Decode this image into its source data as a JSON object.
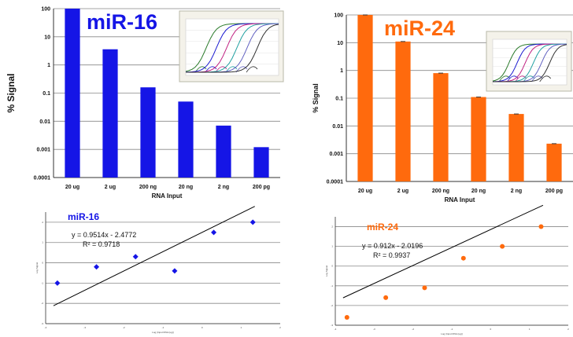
{
  "colors": {
    "blue": "#1515e6",
    "orange": "#ff6a0d",
    "grid": "#888888",
    "fit_line": "#000000"
  },
  "chart_data": [
    {
      "type": "bar",
      "title": "miR-16",
      "ylabel": "% Signal",
      "xlabel": "RNA Input",
      "yscale": "log",
      "ylim": [
        0.0001,
        100
      ],
      "ytick_labels": [
        "100",
        "10",
        "1",
        "0.1",
        "0.01",
        "0.001",
        "0.0001"
      ],
      "categories": [
        "20 ug",
        "2 ug",
        "200 ng",
        "20 ng",
        "2 ng",
        "200 pg"
      ],
      "values": [
        100,
        3.6,
        0.16,
        0.05,
        0.007,
        0.0012
      ],
      "error_bars": false,
      "grid": true,
      "inset": "qPCR amplification curves (thumbnail)"
    },
    {
      "type": "bar",
      "title": "miR-24",
      "ylabel": "% Signal",
      "xlabel": "RNA Input",
      "yscale": "log",
      "ylim": [
        0.0001,
        100
      ],
      "ytick_labels": [
        "100",
        "10",
        "1",
        "0.1",
        "0.01",
        "0.001",
        "0.0001"
      ],
      "categories": [
        "20 ug",
        "2 ug",
        "200 ng",
        "20 ng",
        "2 ng",
        "200 pg"
      ],
      "values": [
        100,
        11,
        0.8,
        0.11,
        0.027,
        0.0023
      ],
      "error_bars": true,
      "grid": true,
      "inset": "qPCR amplification curves (thumbnail)"
    },
    {
      "type": "scatter",
      "title": "miR-16",
      "xlabel": "Log (Input RNA (ug))",
      "ylabel": "Log Signal",
      "equation": "y = 0.9514x - 2.4772",
      "r2": "R² = 0.9718",
      "x": [
        -2.7,
        -1.7,
        -0.7,
        0.3,
        1.3
      ],
      "points": [
        [
          -3.7,
          -1.0
        ],
        [
          -2.7,
          -0.2
        ],
        [
          -1.7,
          0.3
        ],
        [
          -0.7,
          -0.4
        ],
        [
          0.3,
          1.5
        ],
        [
          1.3,
          2.0
        ]
      ],
      "trendline": {
        "slope": 0.9514,
        "intercept": -2.4772
      },
      "grid": true
    },
    {
      "type": "scatter",
      "title": "miR-24",
      "xlabel": "Log (Input RNA (ug))",
      "ylabel": "Log Signal",
      "equation": "y = 0.912x - 2.0196",
      "r2": "R² = 0.9937",
      "points": [
        [
          -3.7,
          -2.6
        ],
        [
          -2.7,
          -1.6
        ],
        [
          -1.7,
          -1.1
        ],
        [
          -0.7,
          0.4
        ],
        [
          0.3,
          1.0
        ],
        [
          1.3,
          2.0
        ]
      ],
      "trendline": {
        "slope": 0.912,
        "intercept": -2.0196
      },
      "grid": true
    }
  ]
}
